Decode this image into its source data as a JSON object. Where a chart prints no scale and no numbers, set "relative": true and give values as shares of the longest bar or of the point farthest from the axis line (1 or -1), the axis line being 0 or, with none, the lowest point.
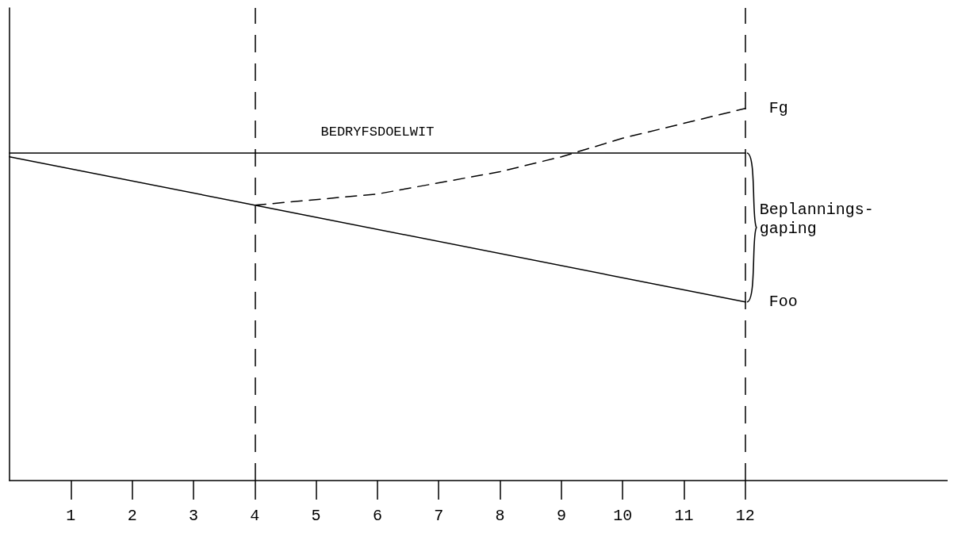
{
  "chart_data": {
    "type": "line",
    "relative": true,
    "xlim": [
      0,
      15.3
    ],
    "xticks": [
      1,
      2,
      3,
      4,
      5,
      6,
      7,
      8,
      9,
      10,
      11,
      12
    ],
    "grid": false,
    "legend": false,
    "tick_labels": "x",
    "marker": "none",
    "series": [
      {
        "name": "BEDRYFSDOELWIT",
        "color": "#000000",
        "line_style": "solid",
        "x": [
          0,
          6,
          12
        ],
        "values": [
          0.88,
          0.88,
          0.88
        ]
      },
      {
        "name": "Fg",
        "color": "#000000",
        "line_style": "dashed",
        "x": [
          4,
          6,
          8,
          9,
          10,
          12
        ],
        "values": [
          0.74,
          0.77,
          0.83,
          0.87,
          0.92,
          1
        ]
      },
      {
        "name": "Foo",
        "color": "#000000",
        "line_style": "solid",
        "x": [
          0,
          4,
          12
        ],
        "values": [
          0.87,
          0.74,
          0.48
        ]
      }
    ],
    "ref_lines": [
      {
        "axis": "x",
        "value": 4,
        "line_style": "dashed",
        "color": "#000000"
      },
      {
        "axis": "x",
        "value": 12,
        "line_style": "dashed",
        "color": "#000000"
      }
    ],
    "annotations": [
      {
        "text": "Beplannings-\ngaping",
        "x": 12,
        "y": 0.68
      }
    ]
  }
}
